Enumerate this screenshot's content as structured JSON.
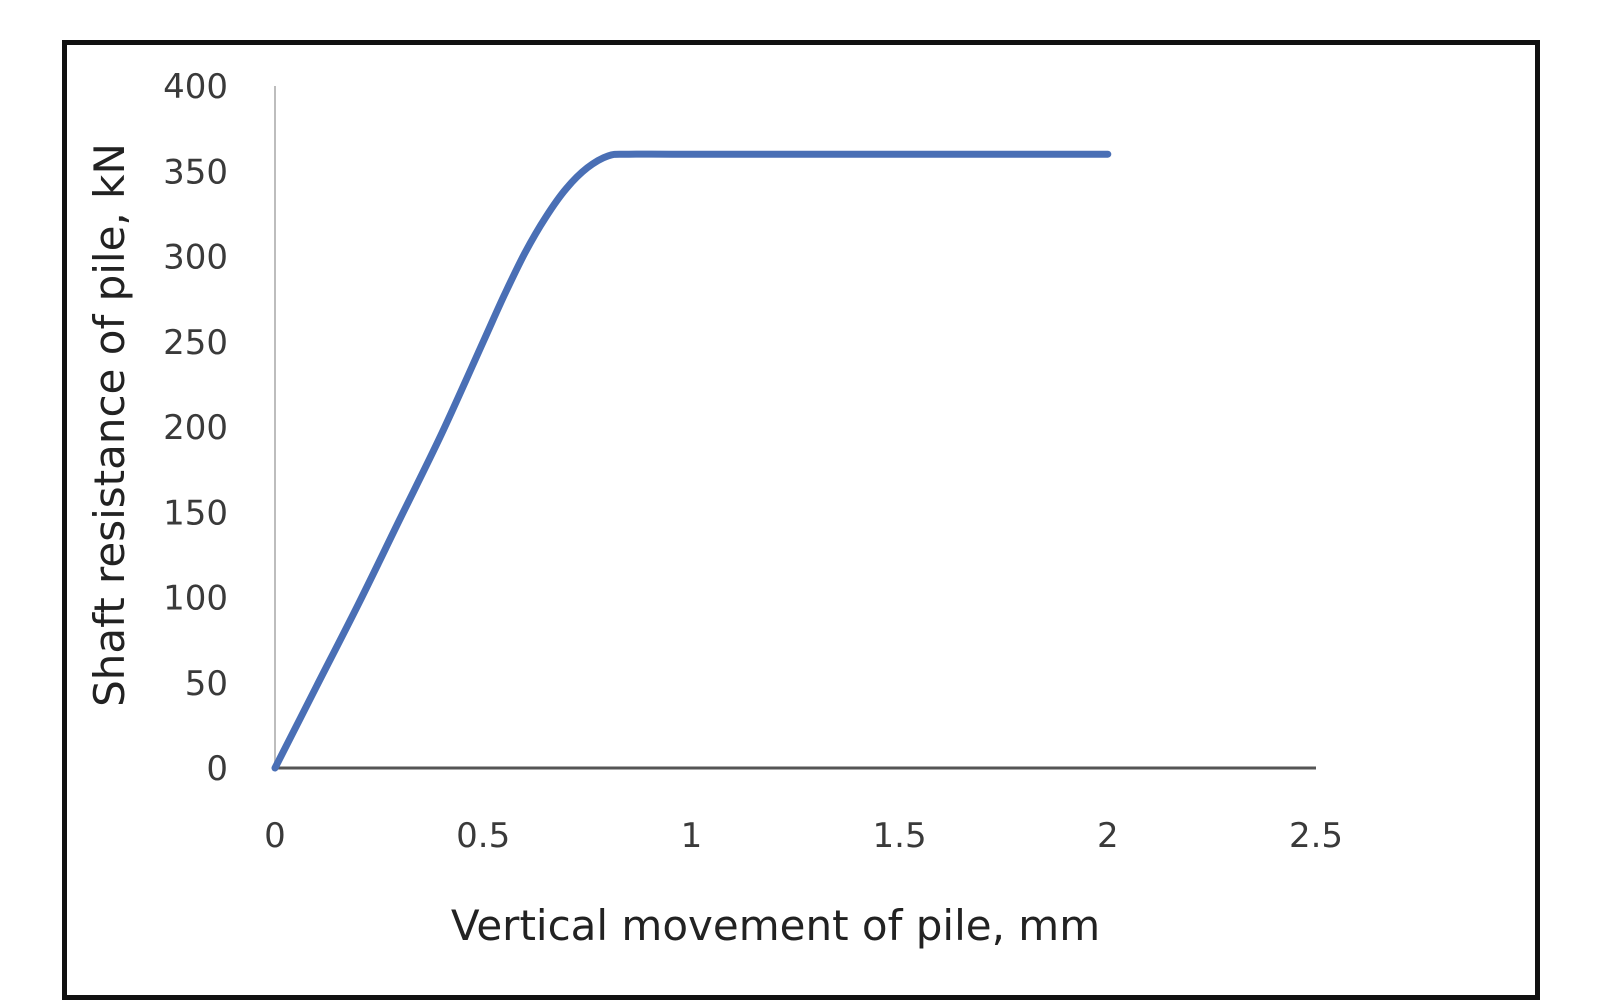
{
  "chart_data": {
    "type": "line",
    "title": "",
    "xlabel": "Vertical movement of pile, mm",
    "ylabel": "Shaft resistance of pile, kN",
    "xlim": [
      0,
      2.5
    ],
    "ylim": [
      0,
      400
    ],
    "x_ticks": [
      "0",
      "0.5",
      "1",
      "1.5",
      "2",
      "2.5"
    ],
    "y_ticks": [
      "0",
      "50",
      "100",
      "150",
      "200",
      "250",
      "300",
      "350",
      "400"
    ],
    "grid": false,
    "legend": "none",
    "series": [
      {
        "color": "#4a6fb5",
        "points": [
          [
            0,
            0
          ],
          [
            0.1,
            48
          ],
          [
            0.2,
            96
          ],
          [
            0.3,
            146
          ],
          [
            0.4,
            196
          ],
          [
            0.5,
            250
          ],
          [
            0.55,
            277
          ],
          [
            0.6,
            302
          ],
          [
            0.65,
            323
          ],
          [
            0.7,
            340
          ],
          [
            0.75,
            352
          ],
          [
            0.8,
            359
          ],
          [
            0.85,
            360
          ],
          [
            1.0,
            360
          ],
          [
            1.5,
            360
          ],
          [
            2.0,
            360
          ]
        ]
      }
    ],
    "axis_color": "#555555",
    "text_color": "#3a3a3a"
  }
}
